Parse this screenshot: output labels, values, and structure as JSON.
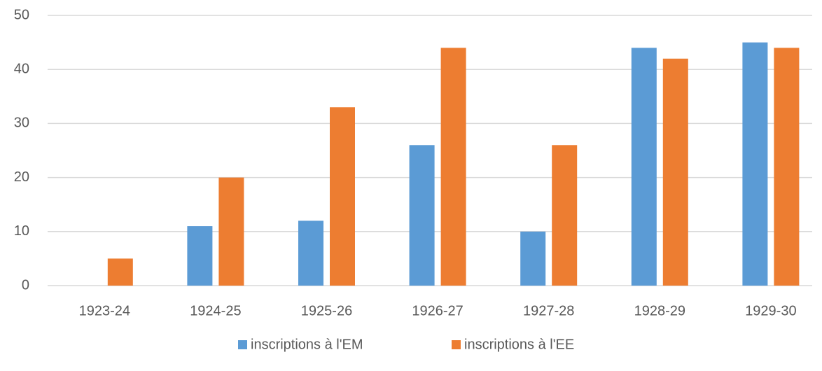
{
  "chart_data": {
    "type": "bar",
    "categories": [
      "1923-24",
      "1924-25",
      "1925-26",
      "1926-27",
      "1927-28",
      "1928-29",
      "1929-30"
    ],
    "series": [
      {
        "name": "inscriptions à l'EM",
        "color": "#5b9bd5",
        "values": [
          0,
          11,
          12,
          26,
          10,
          44,
          45
        ]
      },
      {
        "name": "inscriptions à l'EE",
        "color": "#ed7d31",
        "values": [
          5,
          20,
          33,
          44,
          26,
          42,
          44
        ]
      }
    ],
    "ylim": [
      0,
      50
    ],
    "yticks": [
      0,
      10,
      20,
      30,
      40,
      50
    ],
    "grid": true,
    "legend": "bottom"
  }
}
